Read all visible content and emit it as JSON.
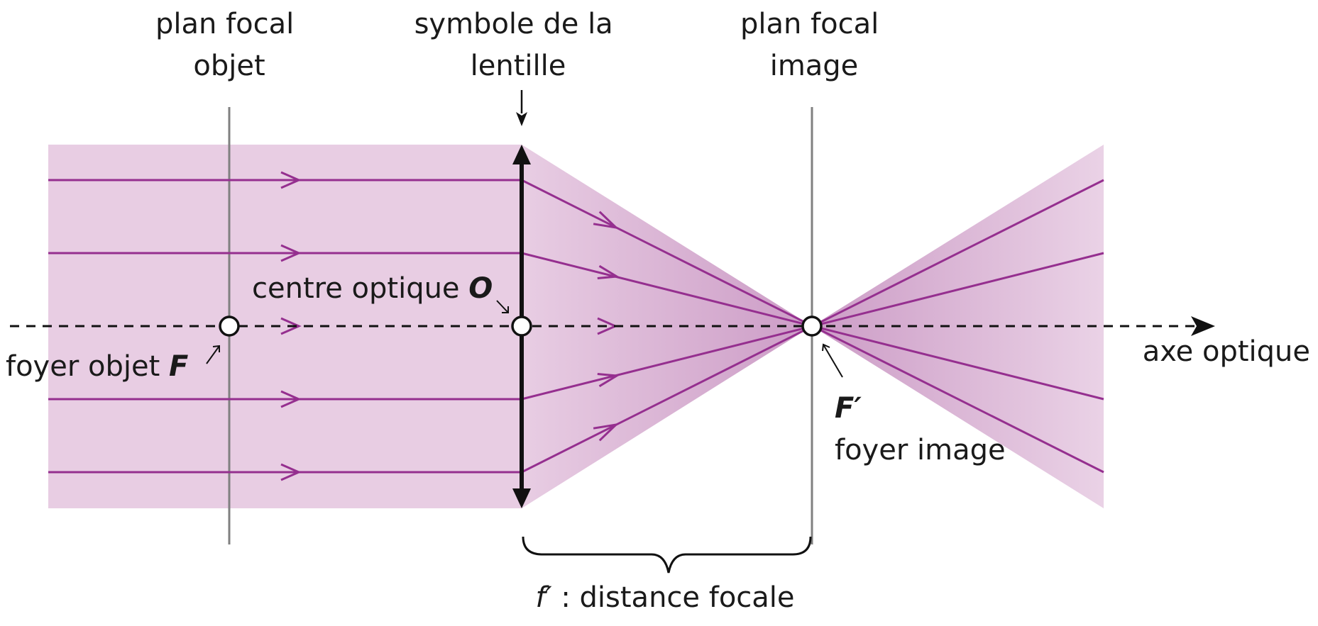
{
  "labels": {
    "object_focal_plane_line1": "plan focal",
    "object_focal_plane_line2": "objet",
    "lens_symbol_line1": "symbole de la",
    "lens_symbol_line2": "lentille",
    "image_focal_plane_line1": "plan focal",
    "image_focal_plane_line2": "image",
    "optical_center_text": "centre optique ",
    "optical_center_symbol": "O",
    "object_focus_text": "foyer objet ",
    "object_focus_symbol": "F",
    "optical_axis": "axe optique",
    "image_focus_symbol": "F′",
    "image_focus_text": "foyer image",
    "focal_length_symbol": "f′",
    "focal_length_text": " : distance focale"
  },
  "colors": {
    "beam_fill": "#e8cde3",
    "beam_fill_dark": "#cc9cc6",
    "ray": "#952f8f",
    "plane": "#808080",
    "ink": "#111111"
  }
}
